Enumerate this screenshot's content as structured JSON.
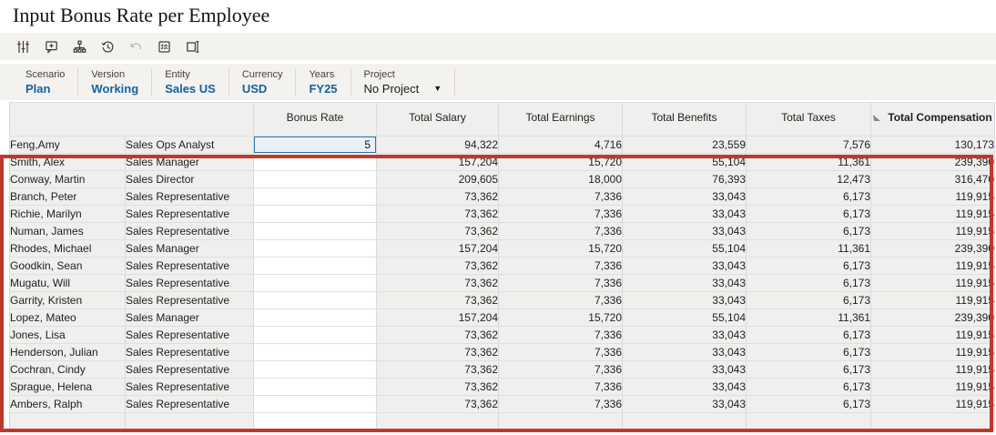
{
  "page": {
    "title": "Input Bonus Rate per Employee"
  },
  "toolbar": {
    "icons": [
      {
        "name": "adjust-sliders-icon",
        "disabled": false
      },
      {
        "name": "add-comment-icon",
        "disabled": false
      },
      {
        "name": "hierarchy-icon",
        "disabled": false
      },
      {
        "name": "history-icon",
        "disabled": false
      },
      {
        "name": "undo-icon",
        "disabled": true
      },
      {
        "name": "grid-icon",
        "disabled": false
      },
      {
        "name": "open-window-icon",
        "disabled": false
      }
    ]
  },
  "pov": {
    "items": [
      {
        "label": "Scenario",
        "value": "Plan"
      },
      {
        "label": "Version",
        "value": "Working"
      },
      {
        "label": "Entity",
        "value": "Sales US"
      },
      {
        "label": "Currency",
        "value": "USD"
      },
      {
        "label": "Years",
        "value": "FY25"
      },
      {
        "label": "Project",
        "value": "No Project",
        "dropdown": true
      }
    ]
  },
  "grid": {
    "column_headers": [
      "Bonus Rate",
      "Total Salary",
      "Total Earnings",
      "Total Benefits",
      "Total Taxes",
      "Total Compensation"
    ],
    "rows": [
      {
        "name": "Feng,Amy",
        "title": "Sales Ops Analyst",
        "bonus": "5",
        "selected": true,
        "values": [
          "94,322",
          "4,716",
          "23,559",
          "7,576",
          "130,173"
        ]
      },
      {
        "name": "Smith, Alex",
        "title": "Sales Manager",
        "bonus": "",
        "selected": false,
        "values": [
          "157,204",
          "15,720",
          "55,104",
          "11,361",
          "239,390"
        ]
      },
      {
        "name": "Conway, Martin",
        "title": "Sales Director",
        "bonus": "",
        "selected": false,
        "values": [
          "209,605",
          "18,000",
          "76,393",
          "12,473",
          "316,470"
        ]
      },
      {
        "name": "Branch, Peter",
        "title": "Sales Representative",
        "bonus": "",
        "selected": false,
        "values": [
          "73,362",
          "7,336",
          "33,043",
          "6,173",
          "119,915"
        ]
      },
      {
        "name": "Richie, Marilyn",
        "title": "Sales Representative",
        "bonus": "",
        "selected": false,
        "values": [
          "73,362",
          "7,336",
          "33,043",
          "6,173",
          "119,915"
        ]
      },
      {
        "name": "Numan, James",
        "title": "Sales Representative",
        "bonus": "",
        "selected": false,
        "values": [
          "73,362",
          "7,336",
          "33,043",
          "6,173",
          "119,915"
        ]
      },
      {
        "name": "Rhodes, Michael",
        "title": "Sales Manager",
        "bonus": "",
        "selected": false,
        "values": [
          "157,204",
          "15,720",
          "55,104",
          "11,361",
          "239,390"
        ]
      },
      {
        "name": "Goodkin, Sean",
        "title": "Sales Representative",
        "bonus": "",
        "selected": false,
        "values": [
          "73,362",
          "7,336",
          "33,043",
          "6,173",
          "119,915"
        ]
      },
      {
        "name": "Mugatu, Will",
        "title": "Sales Representative",
        "bonus": "",
        "selected": false,
        "values": [
          "73,362",
          "7,336",
          "33,043",
          "6,173",
          "119,915"
        ]
      },
      {
        "name": "Garrity, Kristen",
        "title": "Sales Representative",
        "bonus": "",
        "selected": false,
        "values": [
          "73,362",
          "7,336",
          "33,043",
          "6,173",
          "119,915"
        ]
      },
      {
        "name": "Lopez, Mateo",
        "title": "Sales Manager",
        "bonus": "",
        "selected": false,
        "values": [
          "157,204",
          "15,720",
          "55,104",
          "11,361",
          "239,390"
        ]
      },
      {
        "name": "Jones, Lisa",
        "title": "Sales Representative",
        "bonus": "",
        "selected": false,
        "values": [
          "73,362",
          "7,336",
          "33,043",
          "6,173",
          "119,915"
        ]
      },
      {
        "name": "Henderson, Julian",
        "title": "Sales Representative",
        "bonus": "",
        "selected": false,
        "values": [
          "73,362",
          "7,336",
          "33,043",
          "6,173",
          "119,915"
        ]
      },
      {
        "name": "Cochran, Cindy",
        "title": "Sales Representative",
        "bonus": "",
        "selected": false,
        "values": [
          "73,362",
          "7,336",
          "33,043",
          "6,173",
          "119,915"
        ]
      },
      {
        "name": "Sprague, Helena",
        "title": "Sales Representative",
        "bonus": "",
        "selected": false,
        "values": [
          "73,362",
          "7,336",
          "33,043",
          "6,173",
          "119,915"
        ]
      },
      {
        "name": "Ambers, Ralph",
        "title": "Sales Representative",
        "bonus": "",
        "selected": false,
        "values": [
          "73,362",
          "7,336",
          "33,043",
          "6,173",
          "119,915"
        ]
      }
    ]
  },
  "annotation": {
    "highlight_color": "#bf392b"
  },
  "colors": {
    "accent_blue": "#15629e",
    "selected_cell_border": "#2b7aa1",
    "band_gray": "#f4f2ef",
    "cell_gray": "#f0efed"
  }
}
